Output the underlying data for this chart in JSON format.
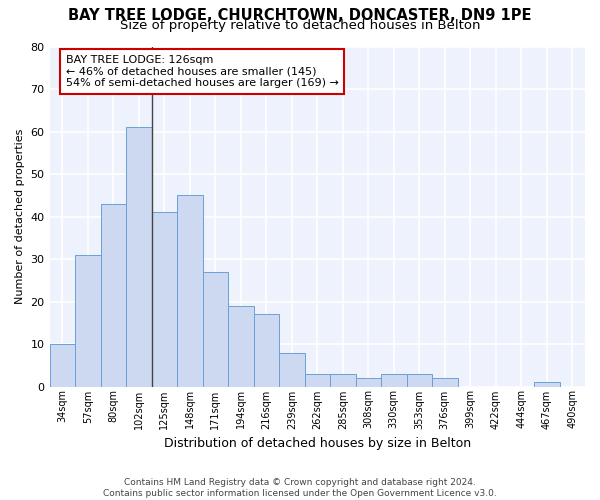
{
  "title1": "BAY TREE LODGE, CHURCHTOWN, DONCASTER, DN9 1PE",
  "title2": "Size of property relative to detached houses in Belton",
  "xlabel": "Distribution of detached houses by size in Belton",
  "ylabel": "Number of detached properties",
  "footnote": "Contains HM Land Registry data © Crown copyright and database right 2024.\nContains public sector information licensed under the Open Government Licence v3.0.",
  "categories": [
    "34sqm",
    "57sqm",
    "80sqm",
    "102sqm",
    "125sqm",
    "148sqm",
    "171sqm",
    "194sqm",
    "216sqm",
    "239sqm",
    "262sqm",
    "285sqm",
    "308sqm",
    "330sqm",
    "353sqm",
    "376sqm",
    "399sqm",
    "422sqm",
    "444sqm",
    "467sqm",
    "490sqm"
  ],
  "values": [
    10,
    31,
    43,
    61,
    41,
    45,
    27,
    19,
    17,
    8,
    3,
    3,
    2,
    3,
    3,
    2,
    0,
    0,
    0,
    1,
    0
  ],
  "bar_color": "#ccd9f0",
  "bar_edge_color": "#6b9fd4",
  "highlight_line_color": "#444444",
  "annotation_text_line1": "BAY TREE LODGE: 126sqm",
  "annotation_text_line2": "← 46% of detached houses are smaller (145)",
  "annotation_text_line3": "54% of semi-detached houses are larger (169) →",
  "annotation_box_color": "#ffffff",
  "annotation_box_edge": "#cc0000",
  "ylim": [
    0,
    80
  ],
  "yticks": [
    0,
    10,
    20,
    30,
    40,
    50,
    60,
    70,
    80
  ],
  "bg_color": "#ffffff",
  "plot_bg_color": "#eef2fc",
  "grid_color": "#ffffff",
  "title1_fontsize": 10.5,
  "title2_fontsize": 9.5,
  "xlabel_fontsize": 9,
  "ylabel_fontsize": 8,
  "vline_x": 3.5
}
